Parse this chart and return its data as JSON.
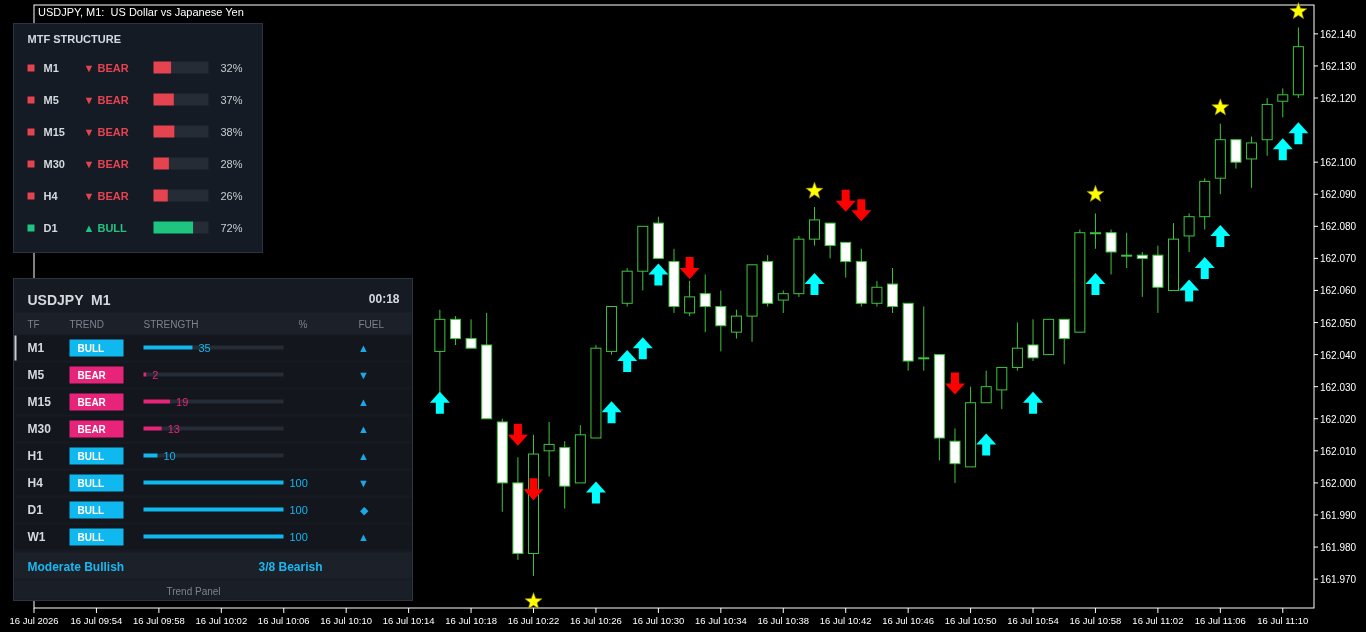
{
  "chart_data": [
    {
      "type": "candlestick",
      "title": "USDJPY, M1:  US Dollar vs Japanese Yen",
      "xlim": [
        "2026-07-16T09:50",
        "2026-07-16T11:12"
      ],
      "xticks": [
        {
          "value": "2026-07-16T09:50",
          "label": "16 Jul 2026"
        },
        {
          "value": "2026-07-16T09:54",
          "label": "16 Jul 09:54"
        },
        {
          "value": "2026-07-16T09:58",
          "label": "16 Jul 09:58"
        },
        {
          "value": "2026-07-16T10:02",
          "label": "16 Jul 10:02"
        },
        {
          "value": "2026-07-16T10:06",
          "label": "16 Jul 10:06"
        },
        {
          "value": "2026-07-16T10:10",
          "label": "16 Jul 10:10"
        },
        {
          "value": "2026-07-16T10:14",
          "label": "16 Jul 10:14"
        },
        {
          "value": "2026-07-16T10:18",
          "label": "16 Jul 10:18"
        },
        {
          "value": "2026-07-16T10:22",
          "label": "16 Jul 10:22"
        },
        {
          "value": "2026-07-16T10:26",
          "label": "16 Jul 10:26"
        },
        {
          "value": "2026-07-16T10:30",
          "label": "16 Jul 10:30"
        },
        {
          "value": "2026-07-16T10:34",
          "label": "16 Jul 10:34"
        },
        {
          "value": "2026-07-16T10:38",
          "label": "16 Jul 10:38"
        },
        {
          "value": "2026-07-16T10:42",
          "label": "16 Jul 10:42"
        },
        {
          "value": "2026-07-16T10:46",
          "label": "16 Jul 10:46"
        },
        {
          "value": "2026-07-16T10:50",
          "label": "16 Jul 10:50"
        },
        {
          "value": "2026-07-16T10:54",
          "label": "16 Jul 10:54"
        },
        {
          "value": "2026-07-16T10:58",
          "label": "16 Jul 10:58"
        },
        {
          "value": "2026-07-16T11:02",
          "label": "16 Jul 11:02"
        },
        {
          "value": "2026-07-16T11:06",
          "label": "16 Jul 11:06"
        },
        {
          "value": "2026-07-16T11:10",
          "label": "16 Jul 11:10"
        }
      ],
      "ylim": [
        161.961,
        162.149
      ],
      "yticks": [
        {
          "value": 161.97,
          "label": "161.970"
        },
        {
          "value": 161.98,
          "label": "161.980"
        },
        {
          "value": 161.99,
          "label": "161.990"
        },
        {
          "value": 162.0,
          "label": "162.000"
        },
        {
          "value": 162.01,
          "label": "162.010"
        },
        {
          "value": 162.02,
          "label": "162.020"
        },
        {
          "value": 162.03,
          "label": "162.030"
        },
        {
          "value": 162.04,
          "label": "162.040"
        },
        {
          "value": 162.05,
          "label": "162.050"
        },
        {
          "value": 162.06,
          "label": "162.060"
        },
        {
          "value": 162.07,
          "label": "162.070"
        },
        {
          "value": 162.08,
          "label": "162.080"
        },
        {
          "value": 162.09,
          "label": "162.090"
        },
        {
          "value": 162.1,
          "label": "162.100"
        },
        {
          "value": 162.12,
          "label": "162.120"
        },
        {
          "value": 162.13,
          "label": "162.130"
        },
        {
          "value": 162.14,
          "label": "162.140"
        }
      ],
      "series": [
        {
          "type": "candlestick",
          "color": "#3ec43e",
          "x": [
            "2026-07-16T10:16",
            "2026-07-16T10:17",
            "2026-07-16T10:18",
            "2026-07-16T10:19",
            "2026-07-16T10:20",
            "2026-07-16T10:21",
            "2026-07-16T10:22",
            "2026-07-16T10:23",
            "2026-07-16T10:24",
            "2026-07-16T10:25",
            "2026-07-16T10:26",
            "2026-07-16T10:27",
            "2026-07-16T10:28",
            "2026-07-16T10:29",
            "2026-07-16T10:30",
            "2026-07-16T10:31",
            "2026-07-16T10:32",
            "2026-07-16T10:33",
            "2026-07-16T10:34",
            "2026-07-16T10:35",
            "2026-07-16T10:36",
            "2026-07-16T10:37",
            "2026-07-16T10:38",
            "2026-07-16T10:39",
            "2026-07-16T10:40",
            "2026-07-16T10:41",
            "2026-07-16T10:42",
            "2026-07-16T10:43",
            "2026-07-16T10:44",
            "2026-07-16T10:45",
            "2026-07-16T10:46",
            "2026-07-16T10:47",
            "2026-07-16T10:48",
            "2026-07-16T10:49",
            "2026-07-16T10:50",
            "2026-07-16T10:51",
            "2026-07-16T10:52",
            "2026-07-16T10:53",
            "2026-07-16T10:54",
            "2026-07-16T10:55",
            "2026-07-16T10:56",
            "2026-07-16T10:57",
            "2026-07-16T10:58",
            "2026-07-16T10:59",
            "2026-07-16T11:00",
            "2026-07-16T11:01",
            "2026-07-16T11:02",
            "2026-07-16T11:03",
            "2026-07-16T11:04",
            "2026-07-16T11:05",
            "2026-07-16T11:06",
            "2026-07-16T11:07",
            "2026-07-16T11:08",
            "2026-07-16T11:09",
            "2026-07-16T11:10",
            "2026-07-16T11:11"
          ],
          "ohlc": [
            [
              162.041,
              162.054,
              162.028,
              162.051
            ],
            [
              162.051,
              162.052,
              162.043,
              162.045
            ],
            [
              162.045,
              162.051,
              162.042,
              162.042
            ],
            [
              162.043,
              162.053,
              162.02,
              162.02
            ],
            [
              162.019,
              162.02,
              161.991,
              162.0
            ],
            [
              162.0,
              162.008,
              161.976,
              161.978
            ],
            [
              161.978,
              162.015,
              161.971,
              162.009
            ],
            [
              162.01,
              162.019,
              162.002,
              162.012
            ],
            [
              162.011,
              162.013,
              161.992,
              161.999
            ],
            [
              162.0,
              162.018,
              162.0,
              162.015
            ],
            [
              162.014,
              162.043,
              162.014,
              162.042
            ],
            [
              162.041,
              162.055,
              162.04,
              162.055
            ],
            [
              162.056,
              162.067,
              162.055,
              162.066
            ],
            [
              162.066,
              162.08,
              162.06,
              162.08
            ],
            [
              162.081,
              162.083,
              162.07,
              162.07
            ],
            [
              162.069,
              162.073,
              162.053,
              162.055
            ],
            [
              162.053,
              162.063,
              162.052,
              162.058
            ],
            [
              162.059,
              162.065,
              162.047,
              162.055
            ],
            [
              162.055,
              162.06,
              162.041,
              162.049
            ],
            [
              162.047,
              162.054,
              162.045,
              162.052
            ],
            [
              162.052,
              162.068,
              162.044,
              162.068
            ],
            [
              162.069,
              162.071,
              162.055,
              162.056
            ],
            [
              162.057,
              162.06,
              162.053,
              162.059
            ],
            [
              162.059,
              162.077,
              162.058,
              162.076
            ],
            [
              162.076,
              162.086,
              162.074,
              162.082
            ],
            [
              162.081,
              162.081,
              162.07,
              162.074
            ],
            [
              162.075,
              162.075,
              162.064,
              162.069
            ],
            [
              162.069,
              162.073,
              162.055,
              162.056
            ],
            [
              162.056,
              162.063,
              162.055,
              162.061
            ],
            [
              162.062,
              162.067,
              162.053,
              162.055
            ],
            [
              162.056,
              162.056,
              162.035,
              162.038
            ],
            [
              162.039,
              162.055,
              162.035,
              162.039
            ],
            [
              162.04,
              162.04,
              162.007,
              162.014
            ],
            [
              162.013,
              162.017,
              162.0,
              162.006
            ],
            [
              162.005,
              162.03,
              162.005,
              162.025
            ],
            [
              162.025,
              162.035,
              162.025,
              162.03
            ],
            [
              162.029,
              162.036,
              162.023,
              162.036
            ],
            [
              162.036,
              162.05,
              162.035,
              162.042
            ],
            [
              162.043,
              162.051,
              162.038,
              162.039
            ],
            [
              162.04,
              162.051,
              162.04,
              162.051
            ],
            [
              162.051,
              162.051,
              162.037,
              162.045
            ],
            [
              162.047,
              162.079,
              162.047,
              162.078
            ],
            [
              162.078,
              162.084,
              162.073,
              162.078
            ],
            [
              162.078,
              162.079,
              162.065,
              162.072
            ],
            [
              162.071,
              162.078,
              162.067,
              162.071
            ],
            [
              162.071,
              162.072,
              162.058,
              162.07
            ],
            [
              162.071,
              162.074,
              162.053,
              162.061
            ],
            [
              162.06,
              162.081,
              162.06,
              162.076
            ],
            [
              162.077,
              162.084,
              162.072,
              162.083
            ],
            [
              162.083,
              162.095,
              162.079,
              162.094
            ],
            [
              162.095,
              162.112,
              162.09,
              162.107
            ],
            [
              162.107,
              162.107,
              162.098,
              162.1
            ],
            [
              162.101,
              162.108,
              162.092,
              162.106
            ],
            [
              162.107,
              162.12,
              162.102,
              162.118
            ],
            [
              162.119,
              162.123,
              162.114,
              162.121
            ],
            [
              162.121,
              162.142,
              162.12,
              162.136
            ]
          ]
        },
        {
          "type": "scatter",
          "marker": "triangle",
          "color": "#00ffff",
          "x": [
            "2026-07-16T10:16",
            "2026-07-16T10:26",
            "2026-07-16T10:27",
            "2026-07-16T10:28",
            "2026-07-16T10:29",
            "2026-07-16T10:30",
            "2026-07-16T10:40",
            "2026-07-16T10:51",
            "2026-07-16T10:54",
            "2026-07-16T10:58",
            "2026-07-16T11:04",
            "2026-07-16T11:05",
            "2026-07-16T11:06",
            "2026-07-16T11:10",
            "2026-07-16T11:11"
          ],
          "values": [
            162.025,
            161.997,
            162.022,
            162.038,
            162.042,
            162.065,
            162.062,
            162.012,
            162.025,
            162.062,
            162.06,
            162.067,
            162.077,
            162.104,
            162.109
          ]
        },
        {
          "type": "scatter",
          "marker": "triangle",
          "color": "#ff0000",
          "x": [
            "2026-07-16T10:21",
            "2026-07-16T10:22",
            "2026-07-16T10:32",
            "2026-07-16T10:42",
            "2026-07-16T10:43",
            "2026-07-16T10:49"
          ],
          "values": [
            162.015,
            161.998,
            162.067,
            162.088,
            162.085,
            162.031
          ]
        },
        {
          "type": "scatter",
          "marker": "star",
          "color": "#ffff00",
          "x": [
            "2026-07-16T10:22",
            "2026-07-16T10:40",
            "2026-07-16T10:58",
            "2026-07-16T11:06",
            "2026-07-16T11:11"
          ],
          "values": [
            161.963,
            162.091,
            162.09,
            162.117,
            162.147
          ]
        }
      ]
    },
    {
      "type": "bar",
      "orientation": "horizontal",
      "categories": [
        "M1",
        "M5",
        "M15",
        "M30",
        "H4",
        "D1"
      ],
      "values": [
        32,
        37,
        38,
        28,
        26,
        72
      ],
      "colors": [
        "#e5434f",
        "#e5434f",
        "#e5434f",
        "#e5434f",
        "#e5434f",
        "#1fc47f"
      ],
      "value_labels": [
        "32%",
        "37%",
        "38%",
        "28%",
        "26%",
        "72%"
      ],
      "xlim": [
        0,
        100
      ],
      "tick_labels": "y",
      "annotations": [
        "MTF STRUCTURE",
        "▼ BEAR",
        "▼ BEAR",
        "▼ BEAR",
        "▼ BEAR",
        "▼ BEAR",
        "▲ BULL"
      ]
    },
    {
      "type": "bar",
      "orientation": "horizontal",
      "ylabel": "TF",
      "xlabel": "STRENGTH",
      "categories": [
        "M1",
        "M5",
        "M15",
        "M30",
        "H1",
        "H4",
        "D1",
        "W1"
      ],
      "values": [
        35,
        2,
        19,
        13,
        10,
        100,
        100,
        100
      ],
      "colors": [
        "#10b8f0",
        "#e8247a",
        "#e8247a",
        "#e8247a",
        "#10b8f0",
        "#10b8f0",
        "#10b8f0",
        "#10b8f0"
      ],
      "value_labels": [
        "35",
        "2",
        "19",
        "13",
        "10",
        "100",
        "100",
        "100"
      ],
      "xlim": [
        0,
        100
      ],
      "tick_labels": "y",
      "annotations": [
        "USDJPY  M1",
        "00:18",
        "TREND",
        "%",
        "FUEL",
        "Moderate Bullish",
        "3/8 Bearish",
        "Trend Panel",
        "BULL",
        "BEAR",
        "BEAR",
        "BEAR",
        "BULL",
        "BULL",
        "BULL",
        "BULL",
        "▲",
        "▼",
        "▲",
        "▲",
        "▲",
        "▼",
        "◆",
        "▲"
      ]
    }
  ]
}
